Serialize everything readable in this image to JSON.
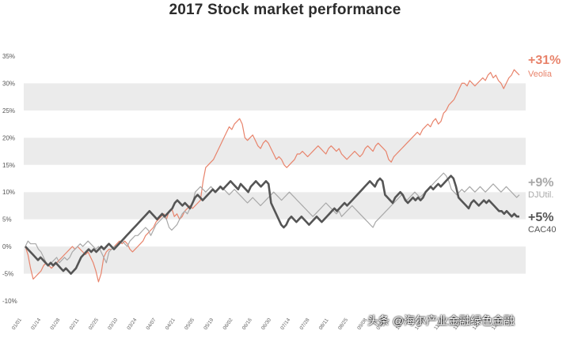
{
  "chart_data": {
    "type": "line",
    "title": "2017 Stock market performance",
    "ylim": [
      -10,
      35
    ],
    "y_ticks": [
      -10,
      -5,
      0,
      5,
      10,
      15,
      20,
      25,
      30,
      35
    ],
    "y_tick_labels": [
      "-10%",
      "-5%",
      "0%",
      "5%",
      "10%",
      "15%",
      "20%",
      "25%",
      "30%",
      "35%"
    ],
    "x_tick_labels": [
      "01/01",
      "01/14",
      "01/28",
      "02/11",
      "02/25",
      "03/10",
      "03/24",
      "04/07",
      "04/21",
      "05/05",
      "05/19",
      "06/02",
      "06/16",
      "06/30",
      "07/14",
      "07/28",
      "08/11",
      "08/25",
      "09/08",
      "09/22",
      "10/06",
      "10/20",
      "11/03",
      "11/17",
      "12/01",
      "12/15"
    ],
    "grid": "alternating horizontal bands",
    "legend": "end-of-line labels at right",
    "colors": {
      "Veolia": "#e8836b",
      "DJUtil.": "#a8a8a8",
      "CAC40": "#555555"
    },
    "series": [
      {
        "name": "Veolia",
        "end_label": "+31%",
        "values": [
          0,
          -1.5,
          -4,
          -6,
          -5.5,
          -5,
          -4.5,
          -3.5,
          -3,
          -3.5,
          -4,
          -3.5,
          -3,
          -2.5,
          -2,
          -1.5,
          -1,
          -0.5,
          0,
          -0.5,
          0,
          -0.5,
          -1,
          -1.5,
          -1,
          -2,
          -3,
          -4.5,
          -6.5,
          -5,
          -2,
          -1,
          -0.5,
          -0.5,
          0,
          0.5,
          1,
          0.5,
          1,
          0.5,
          -0.5,
          -1,
          -0.5,
          0,
          0.5,
          1,
          2,
          2.5,
          3,
          3.5,
          4.5,
          5,
          5.5,
          6,
          5,
          6.5,
          7,
          5.5,
          6,
          5,
          5.5,
          6.5,
          7,
          7.5,
          7,
          7.5,
          8,
          8.5,
          12,
          14.5,
          15,
          15.5,
          16,
          17,
          18,
          19,
          20,
          21,
          22,
          21.5,
          22.5,
          23,
          23.5,
          22.5,
          20,
          19.5,
          20,
          20.5,
          19.5,
          18.5,
          18,
          19,
          19.5,
          19,
          18,
          17,
          16,
          16.5,
          16,
          15,
          14.5,
          15,
          15.5,
          16,
          17,
          17,
          17.5,
          17,
          16.5,
          17,
          17.5,
          18,
          18.5,
          18,
          17.5,
          17,
          18,
          18.5,
          18,
          17.5,
          18,
          17,
          16.5,
          16,
          16.5,
          17,
          17.5,
          17,
          16.5,
          17,
          18,
          18.5,
          18,
          17.5,
          18.5,
          19,
          18.5,
          18,
          17.5,
          16,
          15.5,
          16.5,
          17,
          17.5,
          18,
          18.5,
          19,
          19.5,
          20,
          20.5,
          21,
          20.5,
          21.5,
          22,
          22.5,
          22,
          23,
          23.5,
          22.5,
          23,
          24.5,
          25,
          26,
          26.5,
          27,
          28,
          29,
          30,
          30,
          29.5,
          30.5,
          30,
          29.5,
          30,
          30.5,
          31,
          30.5,
          31.5,
          32,
          31,
          31.5,
          30.5,
          30,
          29,
          30,
          31,
          31.5,
          32.5,
          32,
          31.5
        ]
      },
      {
        "name": "DJUtil.",
        "end_label": "+9%",
        "values": [
          0,
          1,
          0.5,
          0.5,
          0.5,
          -0.5,
          -1,
          -2,
          -3,
          -3.5,
          -3,
          -2.5,
          -2,
          -3,
          -2.5,
          -2,
          -2.5,
          -2,
          -1,
          -0.5,
          0,
          0.5,
          0,
          0.5,
          1,
          0.5,
          0,
          -0.5,
          0,
          -1,
          -2,
          -3,
          -1,
          -0.5,
          0,
          0,
          0.5,
          1,
          0.5,
          0,
          1,
          1.5,
          2,
          2,
          2.5,
          3,
          3.5,
          3,
          2,
          3,
          4,
          4.5,
          5,
          5.5,
          5,
          3.5,
          3,
          3.5,
          4,
          5,
          6,
          6.5,
          6,
          7,
          8,
          10,
          10.5,
          11,
          10.5,
          10,
          10.5,
          11,
          10.5,
          10,
          10.5,
          11,
          10.5,
          10,
          9.5,
          10,
          10.5,
          10,
          9.5,
          9,
          8.5,
          8,
          8.5,
          9,
          8.5,
          8,
          7.5,
          8,
          8.5,
          9,
          9.5,
          10,
          9.5,
          9,
          8.5,
          9,
          9.5,
          10,
          9.5,
          9,
          8.5,
          8,
          7.5,
          7,
          6.5,
          6,
          5.5,
          6,
          6.5,
          7,
          7.5,
          8,
          7.5,
          7,
          6.5,
          6,
          6.5,
          5.5,
          6,
          6.5,
          7,
          7.5,
          7,
          6.5,
          6,
          5.5,
          5,
          4.5,
          4,
          3.5,
          4.5,
          5,
          5.5,
          6,
          6.5,
          7,
          7.5,
          8,
          8.5,
          9,
          9.5,
          9,
          8.5,
          9,
          9.5,
          10,
          9.5,
          9,
          9.5,
          10,
          10.5,
          11,
          11.5,
          12,
          12.5,
          13,
          13.5,
          13,
          12,
          10.5,
          10,
          9.5,
          10,
          10.5,
          10,
          10.5,
          11,
          10.5,
          10,
          10.5,
          11,
          10.5,
          10,
          10.5,
          11,
          11.5,
          11,
          10.5,
          10,
          10.5,
          11,
          10.5,
          10,
          9.5,
          9,
          9.5
        ]
      },
      {
        "name": "CAC40",
        "end_label": "+5%",
        "values": [
          0,
          -0.5,
          -1,
          -1.5,
          -2,
          -2.5,
          -2,
          -2.5,
          -3,
          -3.5,
          -3,
          -3.5,
          -3,
          -3.5,
          -4,
          -4.5,
          -4,
          -4.5,
          -5,
          -4.5,
          -4,
          -3,
          -2,
          -1.5,
          -1,
          -0.5,
          -1,
          -0.5,
          -1,
          -0.5,
          0,
          -0.5,
          0,
          0.5,
          0,
          -0.5,
          0,
          0.5,
          1,
          1.5,
          2,
          2.5,
          3,
          3.5,
          4,
          4.5,
          5,
          5.5,
          6,
          6.5,
          6,
          5.5,
          5,
          5.5,
          6,
          5.5,
          6,
          6.5,
          7,
          8,
          8.5,
          8,
          7.5,
          8,
          7.5,
          7,
          8,
          9,
          9.5,
          9,
          8.5,
          9,
          9.5,
          10,
          10.5,
          10,
          10.5,
          11,
          10.5,
          11,
          11.5,
          12,
          11.5,
          11,
          10.5,
          11.5,
          11,
          10.5,
          10,
          11,
          11.5,
          12,
          11.5,
          11,
          11.5,
          12,
          11.5,
          8,
          7,
          6,
          5,
          4,
          3.5,
          4,
          5,
          5.5,
          5,
          4.5,
          5,
          5.5,
          5,
          4.5,
          4,
          4.5,
          5,
          5.5,
          5,
          4.5,
          5,
          5.5,
          6,
          6.5,
          7,
          6.5,
          7,
          7.5,
          8,
          7.5,
          8,
          8.5,
          9,
          9.5,
          10,
          10.5,
          11,
          11.5,
          12,
          11.5,
          11,
          12,
          12.5,
          12,
          9.5,
          9,
          8.5,
          8,
          9,
          9.5,
          10,
          9.5,
          8.5,
          8,
          8.5,
          9,
          8.5,
          9,
          8.5,
          9,
          10,
          10.5,
          11,
          10.5,
          11,
          11.5,
          11,
          11.5,
          12,
          12.5,
          13,
          12.5,
          11,
          9,
          8.5,
          8,
          7.5,
          7,
          8,
          8.5,
          8,
          7.5,
          8,
          8.5,
          8,
          8.5,
          8,
          7.5,
          7,
          6.5,
          6.5,
          6,
          6.5,
          6,
          5.5,
          6,
          5.5,
          5.5
        ]
      }
    ]
  },
  "watermark": "头条 @海尔产业金融绿色金融"
}
